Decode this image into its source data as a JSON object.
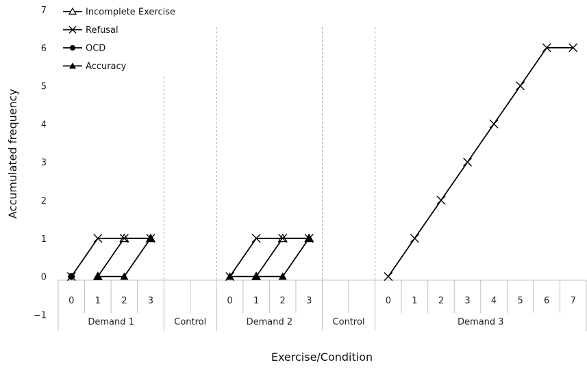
{
  "chart_data": {
    "type": "line",
    "xlabel": "Exercise/Condition",
    "ylabel": "Accumulated frequency",
    "ylim": [
      -1,
      7
    ],
    "yticks": [
      "7",
      "6",
      "5",
      "4",
      "3",
      "2",
      "1",
      "0",
      "−1"
    ],
    "groups": [
      {
        "label": "Demand 1",
        "categories": [
          "0",
          "1",
          "2",
          "3"
        ]
      },
      {
        "label": "Control",
        "categories": [
          "",
          ""
        ]
      },
      {
        "label": "Demand 2",
        "categories": [
          "0",
          "1",
          "2",
          "3"
        ]
      },
      {
        "label": "Control",
        "categories": [
          "",
          ""
        ]
      },
      {
        "label": "Demand 3",
        "categories": [
          "0",
          "1",
          "2",
          "3",
          "4",
          "5",
          "6",
          "7"
        ]
      }
    ],
    "series": [
      {
        "name": "Incomplete Exercise",
        "marker": "open-triangle",
        "segments": [
          {
            "group": 0,
            "values": [
              null,
              0,
              1,
              1
            ]
          },
          {
            "group": 2,
            "values": [
              null,
              0,
              1,
              1
            ]
          }
        ]
      },
      {
        "name": "Refusal",
        "marker": "x",
        "segments": [
          {
            "group": 0,
            "values": [
              0,
              1,
              1,
              1
            ]
          },
          {
            "group": 2,
            "values": [
              0,
              1,
              1,
              1
            ]
          },
          {
            "group": 4,
            "values": [
              0,
              1,
              2,
              3,
              4,
              5,
              6,
              6
            ]
          }
        ]
      },
      {
        "name": "OCD",
        "marker": "circle",
        "segments": [
          {
            "group": 0,
            "values": [
              0,
              null,
              null,
              null
            ]
          }
        ]
      },
      {
        "name": "Accuracy",
        "marker": "filled-triangle",
        "segments": [
          {
            "group": 0,
            "values": [
              null,
              0,
              0,
              1
            ]
          },
          {
            "group": 2,
            "values": [
              0,
              0,
              0,
              1
            ]
          }
        ]
      }
    ],
    "legend": {
      "position": "top-left",
      "entries": [
        "Incomplete Exercise",
        "Refusal",
        "OCD",
        "Accuracy"
      ]
    },
    "grid": false,
    "colors": {
      "line": "#000000",
      "divider": "#a6a6a6"
    }
  }
}
